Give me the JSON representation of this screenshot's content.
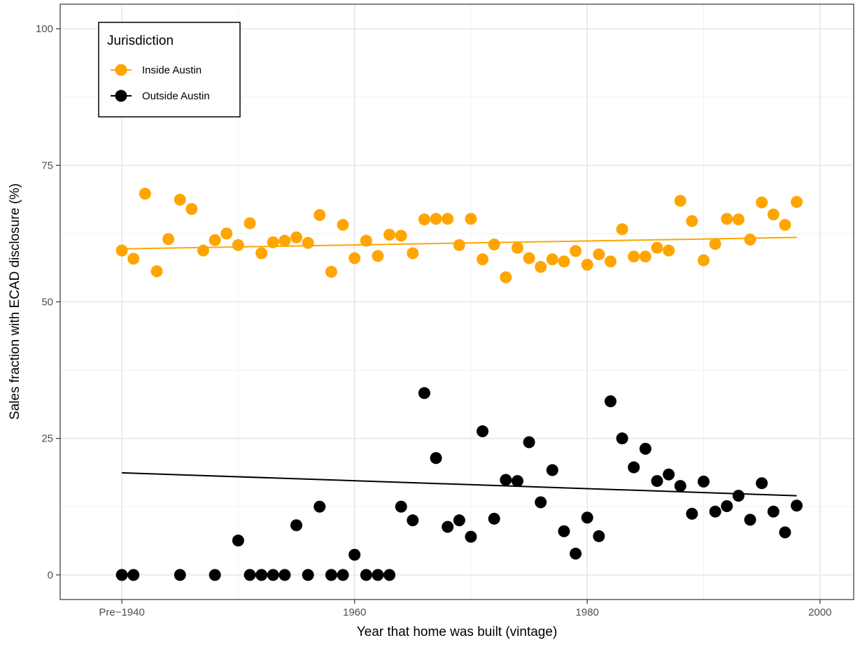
{
  "chart_data": {
    "type": "scatter",
    "title": "",
    "xlabel": "Year that home was built (vintage)",
    "ylabel": "Sales fraction with ECAD disclosure (%)",
    "xlim": [
      1934.7,
      2002.9
    ],
    "ylim": [
      -4.5,
      104.5
    ],
    "x_ticks": [
      {
        "value": 1940,
        "label": "Pre−1940"
      },
      {
        "value": 1960,
        "label": "1960"
      },
      {
        "value": 1980,
        "label": "1980"
      },
      {
        "value": 2000,
        "label": "2000"
      }
    ],
    "y_ticks": [
      {
        "value": 0,
        "label": "0"
      },
      {
        "value": 25,
        "label": "25"
      },
      {
        "value": 50,
        "label": "50"
      },
      {
        "value": 75,
        "label": "75"
      },
      {
        "value": 100,
        "label": "100"
      }
    ],
    "grid": true,
    "legend": {
      "title": "Jurisdiction",
      "position": "top-left"
    },
    "series": [
      {
        "name": "Inside Austin",
        "color": "#FFA500",
        "x": [
          1940,
          1941,
          1942,
          1943,
          1944,
          1945,
          1946,
          1947,
          1948,
          1949,
          1950,
          1951,
          1952,
          1953,
          1954,
          1955,
          1956,
          1957,
          1958,
          1959,
          1960,
          1961,
          1962,
          1963,
          1964,
          1965,
          1966,
          1967,
          1968,
          1969,
          1970,
          1971,
          1972,
          1973,
          1974,
          1975,
          1976,
          1977,
          1978,
          1979,
          1980,
          1981,
          1982,
          1983,
          1984,
          1985,
          1986,
          1987,
          1988,
          1989,
          1990,
          1991,
          1992,
          1993,
          1994,
          1995,
          1996,
          1997,
          1998
        ],
        "y": [
          59.4,
          57.9,
          69.8,
          55.6,
          61.5,
          68.7,
          67.0,
          59.4,
          61.3,
          62.5,
          60.4,
          64.4,
          58.9,
          60.9,
          61.2,
          61.8,
          60.8,
          65.9,
          55.5,
          64.1,
          58.0,
          61.2,
          58.4,
          62.3,
          62.1,
          58.9,
          65.1,
          65.2,
          65.2,
          60.4,
          65.2,
          57.8,
          60.5,
          54.5,
          59.9,
          58.0,
          56.4,
          57.8,
          57.4,
          59.3,
          56.8,
          58.7,
          57.4,
          63.3,
          58.3,
          58.3,
          59.9,
          59.4,
          68.5,
          64.8,
          57.6,
          60.6,
          65.2,
          65.1,
          61.4,
          68.2,
          66.0,
          64.1,
          68.3
        ],
        "trend": {
          "x": [
            1940,
            1998
          ],
          "y": [
            59.7,
            61.8
          ]
        }
      },
      {
        "name": "Outside Austin",
        "color": "#000000",
        "x": [
          1940,
          1941,
          1945,
          1948,
          1950,
          1951,
          1952,
          1953,
          1954,
          1955,
          1956,
          1957,
          1958,
          1959,
          1960,
          1961,
          1962,
          1963,
          1964,
          1965,
          1966,
          1967,
          1968,
          1969,
          1970,
          1971,
          1972,
          1973,
          1974,
          1975,
          1976,
          1977,
          1978,
          1979,
          1980,
          1981,
          1982,
          1983,
          1984,
          1985,
          1986,
          1987,
          1988,
          1989,
          1990,
          1991,
          1992,
          1993,
          1994,
          1995,
          1996,
          1997,
          1998
        ],
        "y": [
          0,
          0,
          0,
          0,
          6.3,
          0,
          0,
          0,
          0,
          9.1,
          0,
          12.5,
          0,
          0,
          3.7,
          0,
          0,
          0,
          12.5,
          10.0,
          33.3,
          21.4,
          8.8,
          10.0,
          7.0,
          26.3,
          10.3,
          17.4,
          17.2,
          24.3,
          13.3,
          19.2,
          8.0,
          3.9,
          10.5,
          7.1,
          31.8,
          25.0,
          19.7,
          23.1,
          17.2,
          18.4,
          16.3,
          11.2,
          17.1,
          11.6,
          12.6,
          14.5,
          10.1,
          16.8,
          11.6,
          7.8,
          12.7
        ],
        "trend": {
          "x": [
            1940,
            1998
          ],
          "y": [
            18.7,
            14.5
          ]
        }
      }
    ]
  }
}
